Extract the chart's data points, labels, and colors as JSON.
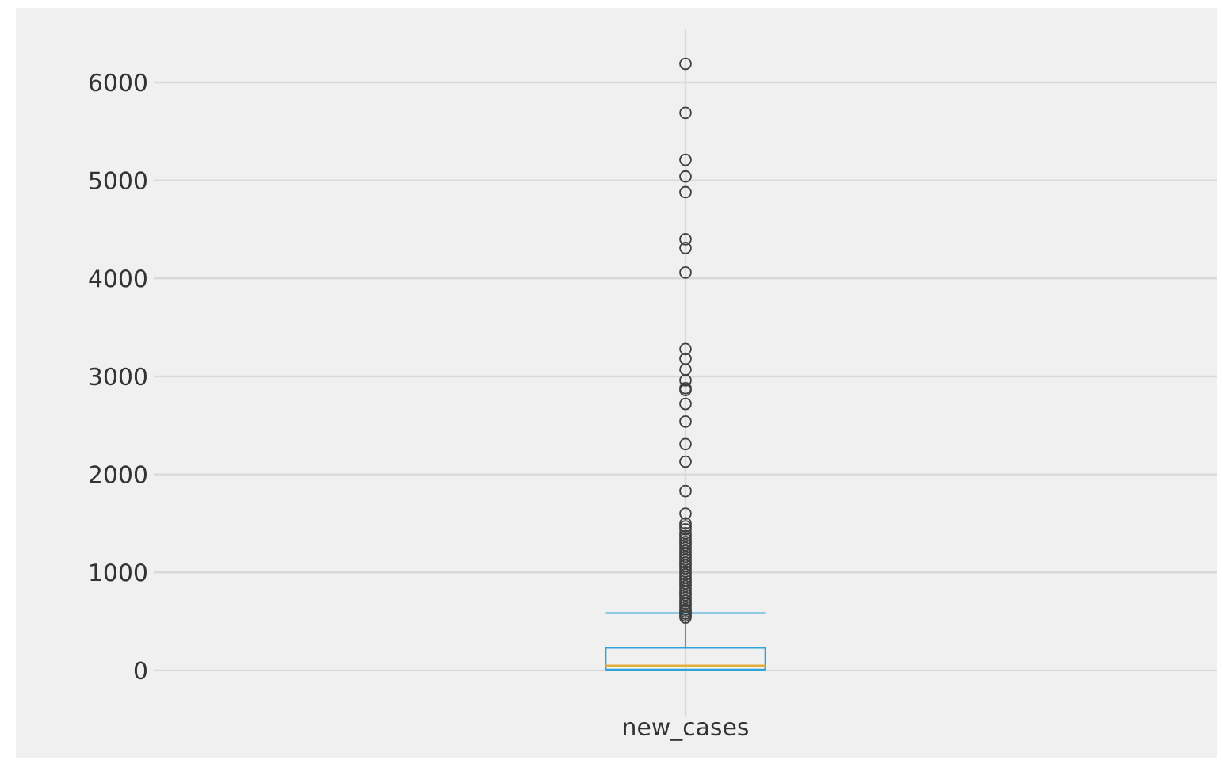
{
  "chart_data": {
    "type": "box",
    "categories": [
      "new_cases"
    ],
    "boxes": [
      {
        "low": 0,
        "q1": 10,
        "median": 50,
        "q3": 230,
        "high": 585,
        "outliers": [
          6190,
          5690,
          5210,
          5040,
          4880,
          4400,
          4310,
          4060,
          3280,
          3180,
          3070,
          2960,
          2880,
          2860,
          2720,
          2540,
          2310,
          2130,
          1830,
          1600,
          1500,
          1470,
          1440,
          1400,
          1370,
          1340,
          1310,
          1280,
          1250,
          1220,
          1190,
          1160,
          1130,
          1100,
          1070,
          1040,
          1010,
          980,
          950,
          920,
          890,
          860,
          830,
          800,
          770,
          740,
          710,
          680,
          650,
          620,
          600,
          580,
          560,
          540
        ]
      }
    ],
    "ylim": [
      -470,
      6550
    ],
    "yticks": [
      0,
      1000,
      2000,
      3000,
      4000,
      5000,
      6000
    ],
    "grid": true,
    "color": "#30a2da"
  }
}
